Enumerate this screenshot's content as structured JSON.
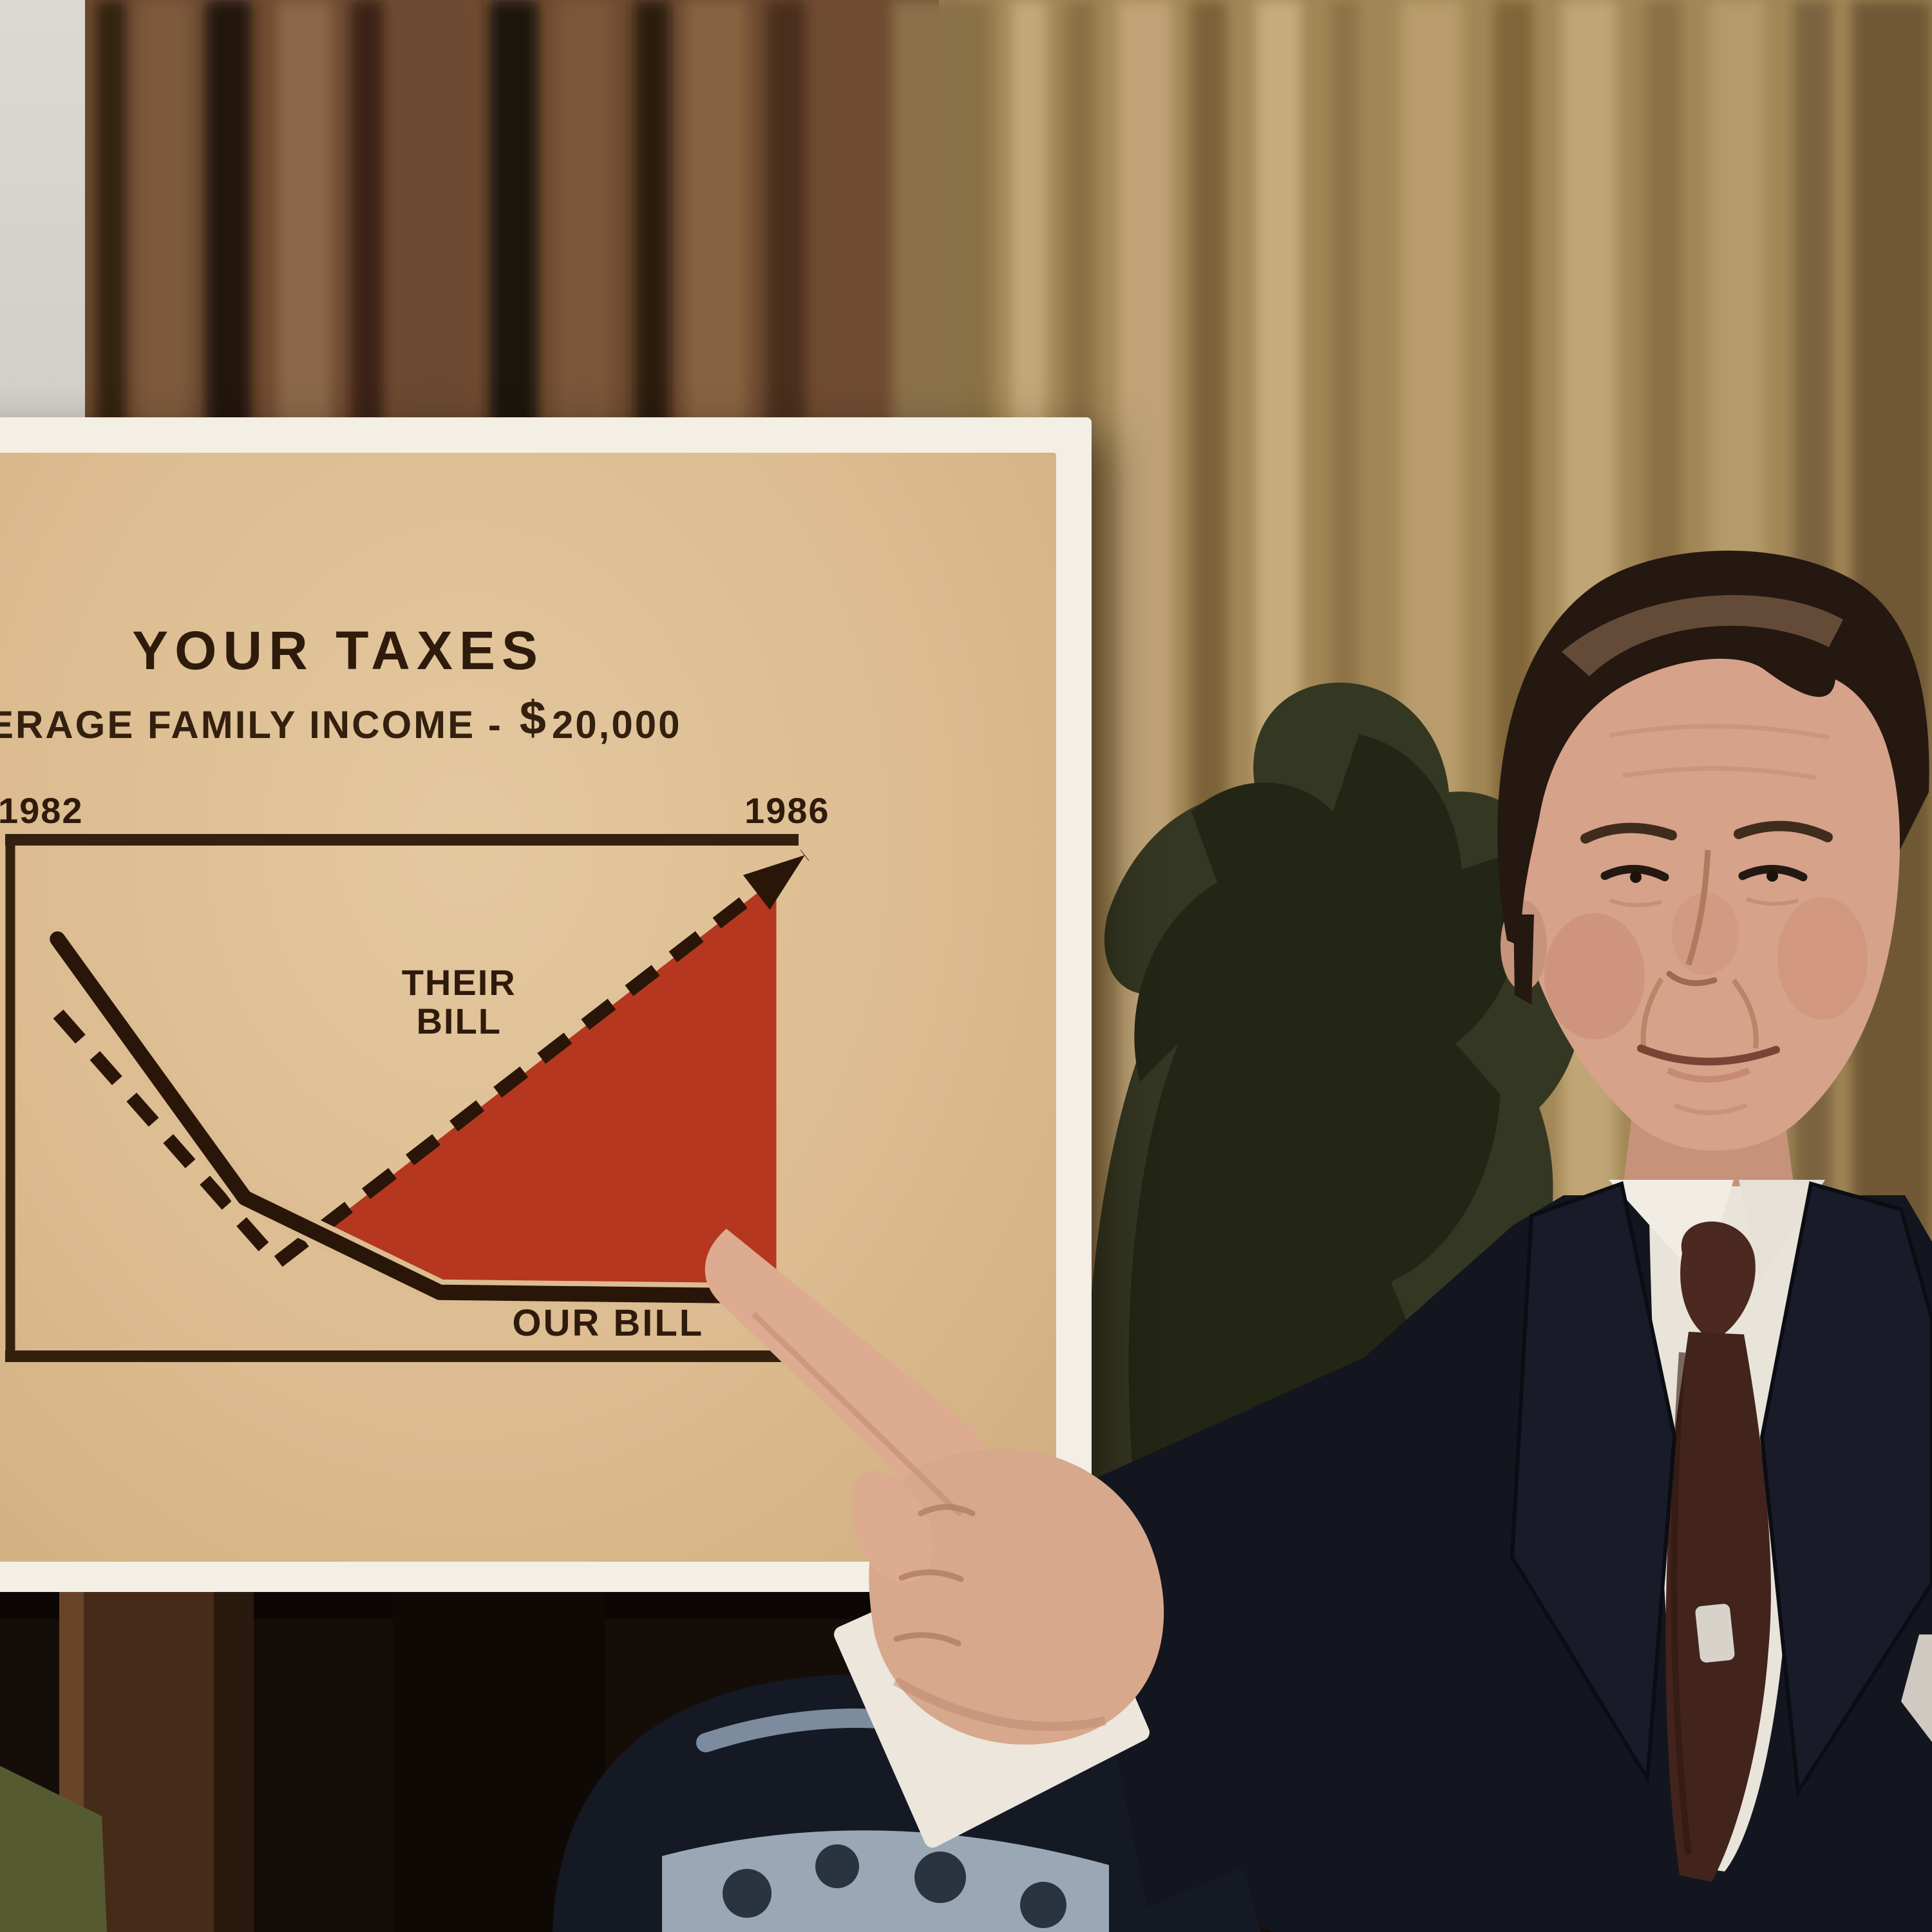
{
  "scene": {
    "description_visible": "man in dark suit pointing at a tax chart poster in front of curtains",
    "setting_elements": [
      "brown drapery",
      "gold curtain",
      "dark plant",
      "easel",
      "blue porcelain urn"
    ]
  },
  "poster": {
    "title": "YOUR TAXES",
    "subtitle_prefix": "ERAGE FAMILY INCOME -",
    "subtitle_currency": "$",
    "subtitle_amount": "20,000",
    "year_start": "1982",
    "year_end": "1986",
    "their_bill": [
      "THEIR",
      "BILL"
    ],
    "our_bill": "OUR BILL"
  },
  "chart_data": {
    "type": "line",
    "title": "YOUR TAXES",
    "subtitle_visible": "ERAGE FAMILY INCOME - $20,000",
    "xlabel": "",
    "ylabel": "",
    "x_axis": {
      "start_label": "1982",
      "end_label": "1986"
    },
    "grid": false,
    "legend_position": "inline-annotations",
    "series": [
      {
        "name": "THEIR BILL",
        "line_style": "dashed",
        "color": "#2a1608",
        "arrow_end": true,
        "points_pct": [
          [
            6.7,
            34.1
          ],
          [
            34.3,
            81.1
          ],
          [
            100.8,
            4.0
          ]
        ],
        "description": "dips after 1982 then rises steeply through 1986 ending in an arrow"
      },
      {
        "name": "OUR BILL",
        "line_style": "solid",
        "color": "#2a1608",
        "halo_color": "#dcbd92",
        "arrow_end": false,
        "points_pct": [
          [
            6.6,
            19.9
          ],
          [
            30.2,
            68.9
          ],
          [
            54.8,
            86.8
          ],
          [
            91.0,
            87.4
          ]
        ],
        "description": "falls steeply from 1982 and stays flat through 1986"
      }
    ],
    "shaded_region": {
      "fill": "#b5371f",
      "between": [
        "THEIR BILL",
        "OUR BILL"
      ],
      "polygon_pct": [
        [
          39.2,
          75.8
        ],
        [
          97.2,
          8.4
        ],
        [
          97.2,
          84.8
        ],
        [
          65.9,
          85.9
        ],
        [
          54.8,
          86.5
        ]
      ]
    }
  },
  "colors": {
    "poster_tan": "#dcbc90",
    "poster_border_white": "#f3efe5",
    "chart_ink": "#2a1608",
    "shaded_red": "#b5371f",
    "curtain_brown": "#6e4a31",
    "curtain_gold": "#a28756",
    "suit_navy": "#13161f",
    "tie_maroon": "#42241c",
    "shirt_white": "#e9e4da",
    "skin": "#d6a28a",
    "urn_blue_band": "#a9b8c6"
  }
}
